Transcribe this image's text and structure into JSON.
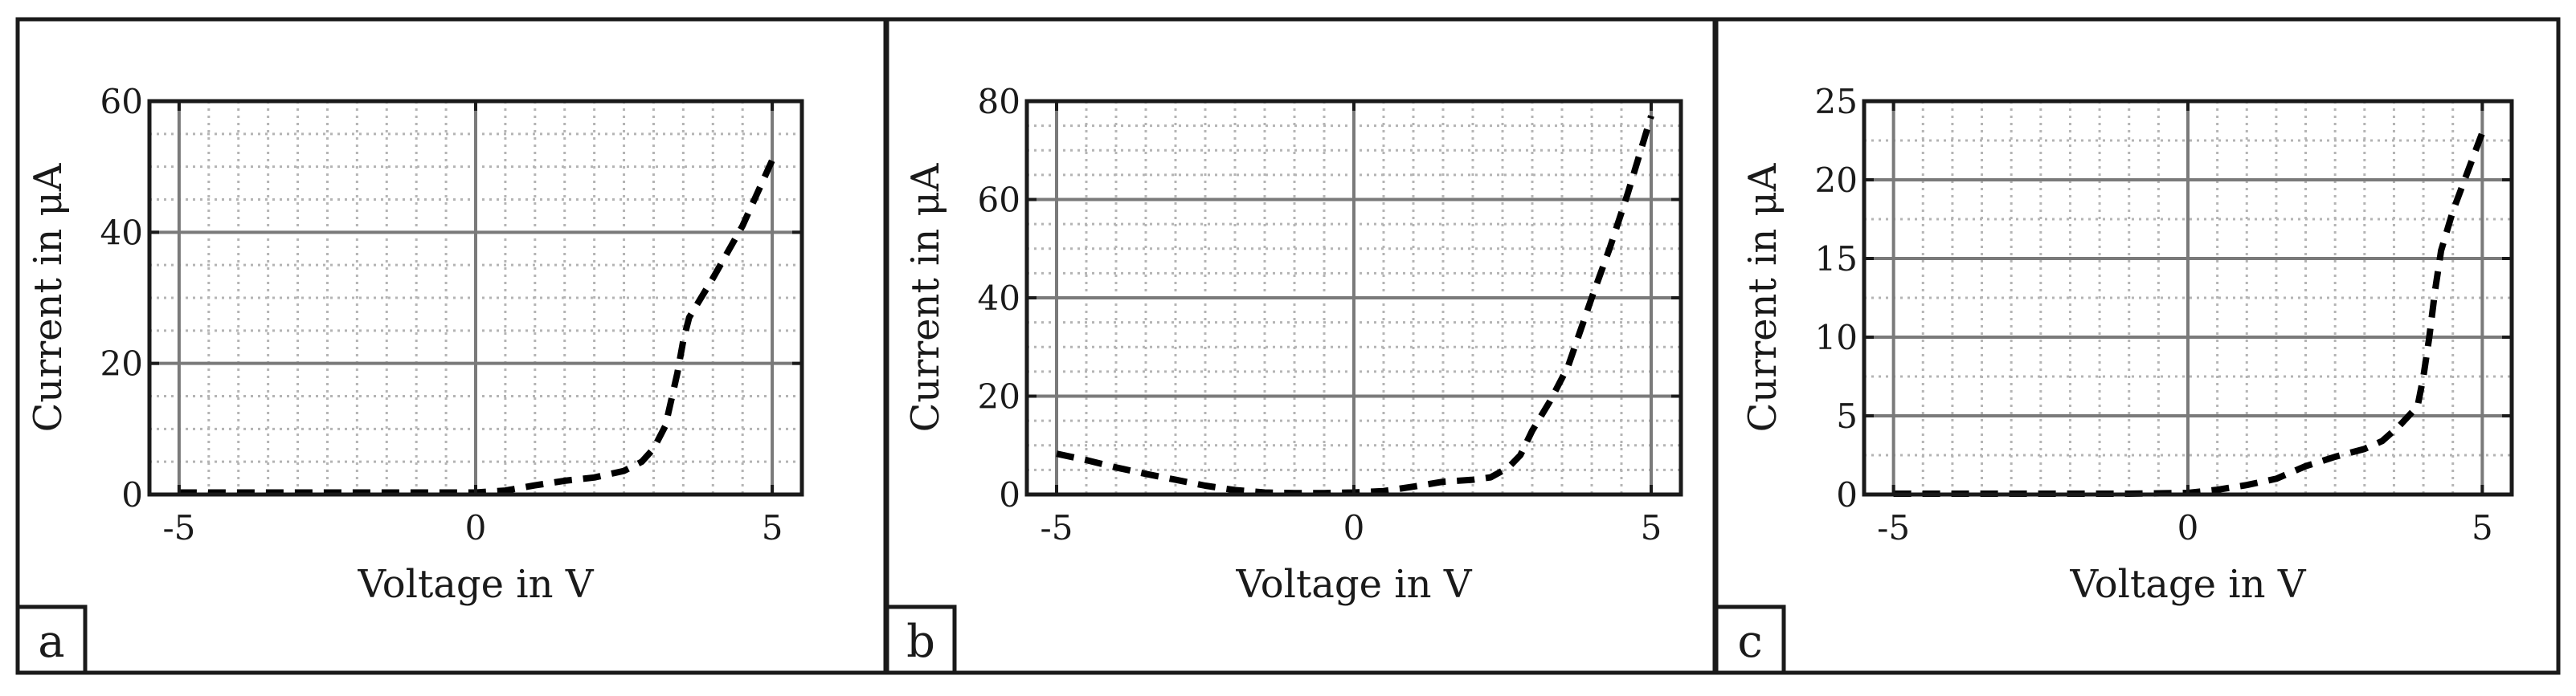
{
  "colors": {
    "curve": "#000000",
    "major_grid": "#7a7a7a",
    "minor_grid": "#b4b4b4",
    "axes_frame": "#1a1a1a",
    "panel_frame": "#1a1a1a"
  },
  "chart_data": [
    {
      "type": "line",
      "panel_label": "a",
      "xlabel": "Voltage in V",
      "ylabel": "Current in μA",
      "xlim": [
        -5.5,
        5.5
      ],
      "ylim": [
        0,
        60
      ],
      "xticks": [
        -5,
        0,
        5
      ],
      "xtick_labels": [
        "-5",
        "0",
        "5"
      ],
      "yticks": [
        0,
        20,
        40,
        60
      ],
      "ytick_labels": [
        "0",
        "20",
        "40",
        "60"
      ],
      "grid": {
        "major": true,
        "minor": true,
        "minor_step_x": 0.5,
        "minor_step_y": 5
      },
      "line_style": "dashed",
      "series": [
        {
          "x": [
            -5,
            -4,
            -3,
            -2,
            -1,
            0,
            0.5,
            1,
            1.5,
            2,
            2.5,
            2.8,
            3.0,
            3.2,
            3.4,
            3.5,
            3.6,
            3.7,
            4,
            4.5,
            5
          ],
          "y": [
            0.3,
            0.3,
            0.3,
            0.3,
            0.3,
            0.3,
            0.6,
            1.4,
            2.1,
            2.6,
            3.6,
            5.0,
            7.0,
            10.5,
            18.5,
            23.5,
            27.0,
            28.5,
            33.0,
            41.0,
            51.0
          ]
        }
      ]
    },
    {
      "type": "line",
      "panel_label": "b",
      "xlabel": "Voltage in V",
      "ylabel": "Current in μA",
      "xlim": [
        -5.5,
        5.5
      ],
      "ylim": [
        0,
        80
      ],
      "xticks": [
        -5,
        0,
        5
      ],
      "xtick_labels": [
        "-5",
        "0",
        "5"
      ],
      "yticks": [
        0,
        20,
        40,
        60,
        80
      ],
      "ytick_labels": [
        "0",
        "20",
        "40",
        "60",
        "80"
      ],
      "grid": {
        "major": true,
        "minor": true,
        "minor_step_x": 0.5,
        "minor_step_y": 5
      },
      "line_style": "dashed",
      "series": [
        {
          "x": [
            -5,
            -4.5,
            -4,
            -3.5,
            -3,
            -2.5,
            -2,
            -1.5,
            -1,
            -0.5,
            0,
            0.5,
            1,
            1.5,
            2,
            2.3,
            2.6,
            2.8,
            3.0,
            3.3,
            3.6,
            4.0,
            4.3,
            4.6,
            5
          ],
          "y": [
            8.3,
            7.0,
            5.5,
            4.2,
            3.0,
            1.8,
            0.9,
            0.4,
            0.3,
            0.3,
            0.4,
            0.7,
            1.6,
            2.6,
            3.0,
            3.5,
            5.5,
            8.0,
            13.0,
            19.0,
            26.0,
            40.0,
            50.0,
            61.0,
            77.0
          ]
        }
      ]
    },
    {
      "type": "line",
      "panel_label": "c",
      "xlabel": "Voltage in V",
      "ylabel": "Current in μA",
      "xlim": [
        -5.5,
        5.5
      ],
      "ylim": [
        0,
        25
      ],
      "xticks": [
        -5,
        0,
        5
      ],
      "xtick_labels": [
        "-5",
        "0",
        "5"
      ],
      "yticks": [
        0,
        5,
        10,
        15,
        20,
        25
      ],
      "ytick_labels": [
        "0",
        "5",
        "10",
        "15",
        "20",
        "25"
      ],
      "grid": {
        "major": true,
        "minor": true,
        "minor_step_x": 0.5,
        "minor_step_y": 2.5
      },
      "line_style": "dashed",
      "series": [
        {
          "x": [
            -5,
            -4,
            -3,
            -2,
            -1,
            0,
            0.5,
            1,
            1.5,
            2,
            2.5,
            3,
            3.3,
            3.6,
            3.9,
            4.0,
            4.1,
            4.2,
            4.3,
            4.5,
            4.7,
            5
          ],
          "y": [
            0.05,
            0.05,
            0.05,
            0.05,
            0.05,
            0.1,
            0.3,
            0.6,
            1.0,
            1.8,
            2.4,
            2.9,
            3.4,
            4.4,
            5.6,
            7.5,
            10.0,
            13.0,
            15.5,
            18.0,
            20.0,
            23.0
          ]
        }
      ]
    }
  ]
}
